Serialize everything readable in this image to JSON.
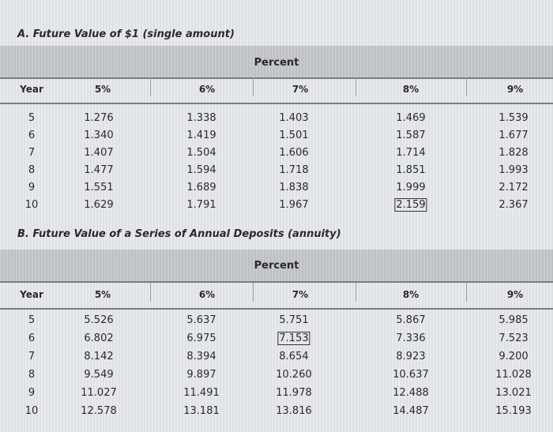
{
  "sections": [
    {
      "title": "A. Future Value of $1 (single amount)",
      "percent": "Percent",
      "headers": [
        "Year",
        "5%",
        "6%",
        "7%",
        "8%",
        "9%"
      ],
      "rows": [
        [
          "5",
          "1.276",
          "1.338",
          "1.403",
          "1.469",
          "1.539"
        ],
        [
          "6",
          "1.340",
          "1.419",
          "1.501",
          "1.587",
          "1.677"
        ],
        [
          "7",
          "1.407",
          "1.504",
          "1.606",
          "1.714",
          "1.828"
        ],
        [
          "8",
          "1.477",
          "1.594",
          "1.718",
          "1.851",
          "1.993"
        ],
        [
          "9",
          "1.551",
          "1.689",
          "1.838",
          "1.999",
          "2.172"
        ],
        [
          "10",
          "1.629",
          "1.791",
          "1.967",
          "2.159",
          "2.367"
        ]
      ]
    },
    {
      "title": "B. Future Value of a Series of Annual Deposits (annuity)",
      "percent": "Percent",
      "headers": [
        "Year",
        "5%",
        "6%",
        "7%",
        "8%",
        "9%"
      ],
      "rows": [
        [
          "5",
          "5.526",
          "5.637",
          "5.751",
          "5.867",
          "5.985"
        ],
        [
          "6",
          "6.802",
          "6.975",
          "7.153",
          "7.336",
          "7.523"
        ],
        [
          "7",
          "8.142",
          "8.394",
          "8.654",
          "8.923",
          "9.200"
        ],
        [
          "8",
          "9.549",
          "9.897",
          "10.260",
          "10.637",
          "11.028"
        ],
        [
          "9",
          "11.027",
          "11.491",
          "11.978",
          "12.488",
          "13.021"
        ],
        [
          "10",
          "12.578",
          "13.181",
          "13.816",
          "14.487",
          "15.193"
        ]
      ]
    }
  ]
}
